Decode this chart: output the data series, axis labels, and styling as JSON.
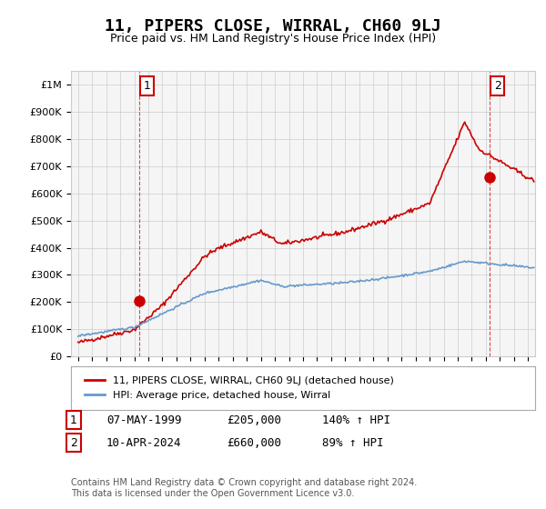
{
  "title": "11, PIPERS CLOSE, WIRRAL, CH60 9LJ",
  "subtitle": "Price paid vs. HM Land Registry's House Price Index (HPI)",
  "legend_line1": "11, PIPERS CLOSE, WIRRAL, CH60 9LJ (detached house)",
  "legend_line2": "HPI: Average price, detached house, Wirral",
  "sale1_label": "1",
  "sale1_date": "07-MAY-1999",
  "sale1_price": "£205,000",
  "sale1_hpi": "140% ↑ HPI",
  "sale1_year": 1999.35,
  "sale1_value": 205000,
  "sale2_label": "2",
  "sale2_date": "10-APR-2024",
  "sale2_price": "£660,000",
  "sale2_hpi": "89% ↑ HPI",
  "sale2_year": 2024.27,
  "sale2_value": 660000,
  "red_color": "#cc0000",
  "blue_color": "#6699cc",
  "grid_color": "#cccccc",
  "background_color": "#ffffff",
  "plot_bg_color": "#f5f5f5",
  "footer": "Contains HM Land Registry data © Crown copyright and database right 2024.\nThis data is licensed under the Open Government Licence v3.0.",
  "ylim": [
    0,
    1050000
  ],
  "xlabel_fontsize": 8,
  "ylabel_fontsize": 8
}
